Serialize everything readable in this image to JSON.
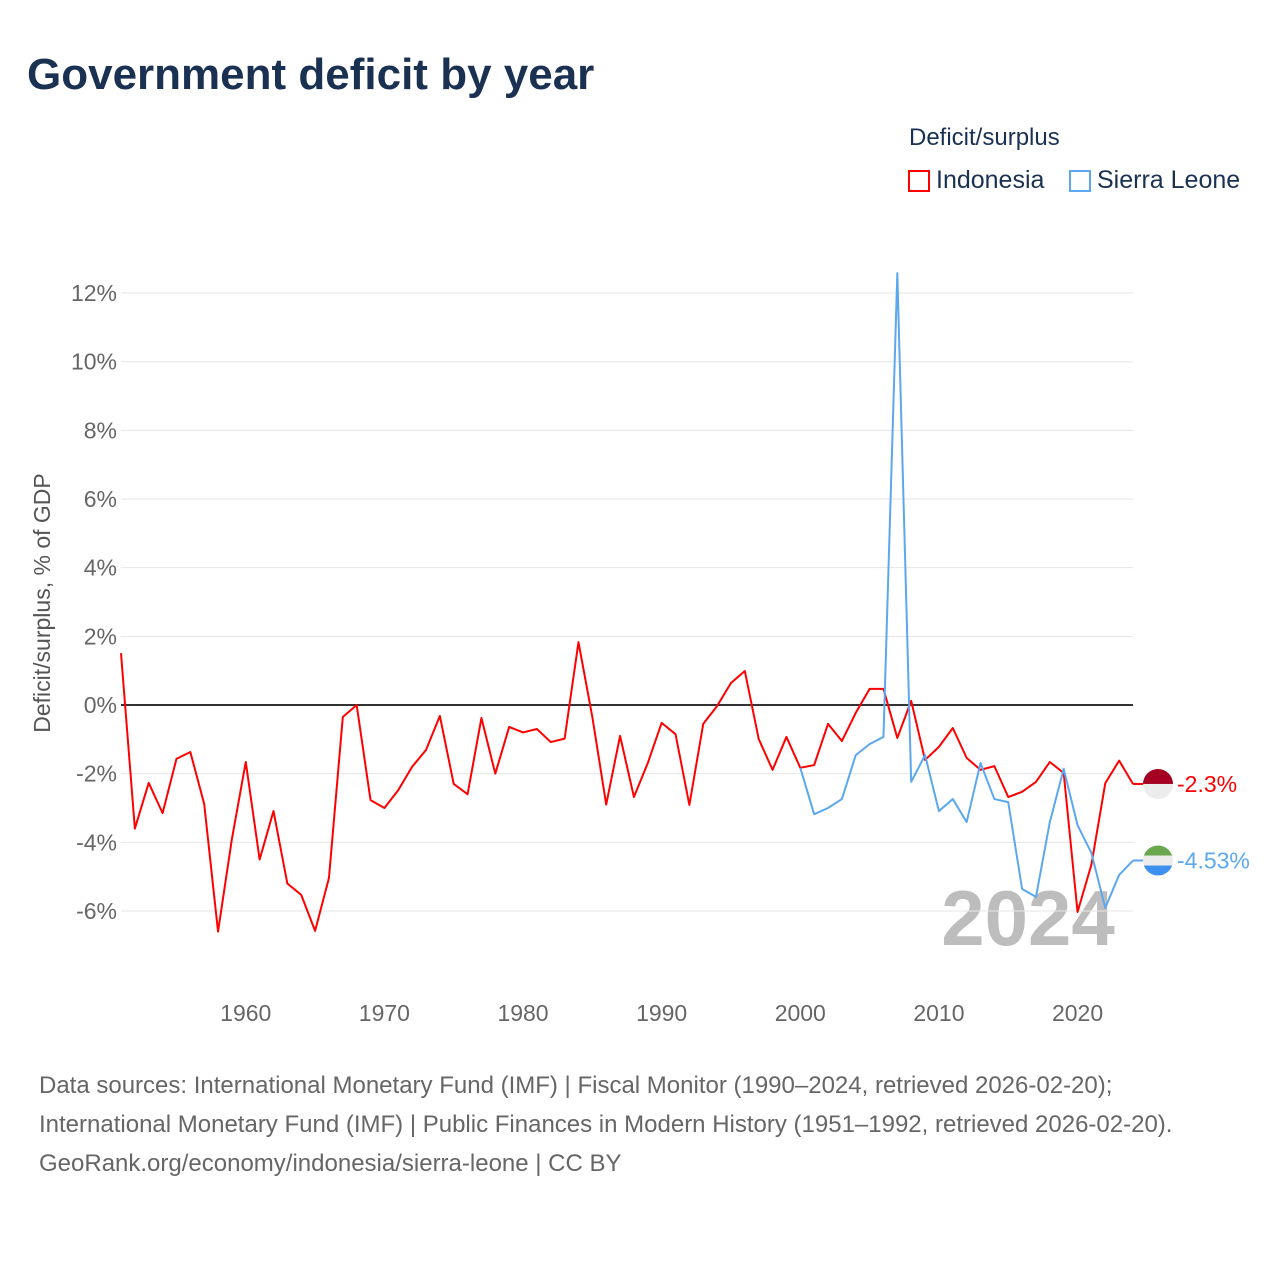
{
  "title": "Government deficit by year",
  "legend": {
    "title": "Deficit/surplus",
    "items": [
      {
        "label": "Indonesia",
        "color": "#ff0000"
      },
      {
        "label": "Sierra Leone",
        "color": "#5ba8f0"
      }
    ]
  },
  "watermark_year": "2024",
  "footer": {
    "sources": "Data sources: International Monetary Fund (IMF) | Fiscal Monitor (1990–2024, retrieved 2026-02-20); International Monetary Fund (IMF) | Public Finances in Modern History (1951–1992, retrieved 2026-02-20).",
    "credit": "GeoRank.org/economy/indonesia/sierra-leone | CC BY"
  },
  "chart_data": {
    "type": "line",
    "title": "Government deficit by year",
    "ylabel": "Deficit/surplus, % of GDP",
    "xlabel": "",
    "xlim": [
      1951,
      2024
    ],
    "ylim": [
      -8.1,
      12.8
    ],
    "grid": true,
    "legend_placement": "top-right",
    "x_ticks": [
      1960,
      1970,
      1980,
      1990,
      2000,
      2010,
      2020
    ],
    "x_tick_labels": [
      "1960",
      "1970",
      "1980",
      "1990",
      "2000",
      "2010",
      "2020"
    ],
    "y_ticks": [
      -6,
      -4,
      -2,
      0,
      2,
      4,
      6,
      8,
      10,
      12
    ],
    "y_tick_labels": [
      "-6%",
      "-4%",
      "-2%",
      "0%",
      "2%",
      "4%",
      "6%",
      "8%",
      "10%",
      "12%"
    ],
    "series": [
      {
        "name": "Indonesia",
        "color": "#ff0000",
        "end_label": "-2.3%",
        "start_year": 1951,
        "values": [
          1.51,
          -3.6,
          -2.27,
          -3.15,
          -1.57,
          -1.37,
          -2.88,
          -6.6,
          -3.9,
          -1.66,
          -4.5,
          -3.09,
          -5.2,
          -5.53,
          -6.58,
          -5.04,
          -0.35,
          0,
          -2.77,
          -3.0,
          -2.48,
          -1.8,
          -1.31,
          -0.32,
          -2.3,
          -2.6,
          -0.38,
          -2.0,
          -0.64,
          -0.8,
          -0.7,
          -1.08,
          -0.98,
          1.83,
          -0.35,
          -2.9,
          -0.9,
          -2.68,
          -1.69,
          -0.52,
          -0.85,
          -2.91,
          -0.55,
          -0.03,
          0.64,
          0.99,
          -0.99,
          -1.89,
          -0.93,
          -1.83,
          -1.75,
          -0.55,
          -1.05,
          -0.23,
          0.47,
          0.47,
          -0.96,
          0.12,
          -1.6,
          -1.22,
          -0.67,
          -1.54,
          -1.89,
          -1.78,
          -2.68,
          -2.53,
          -2.24,
          -1.66,
          -1.98,
          -6.03,
          -4.65,
          -2.28,
          -1.62,
          -2.3
        ]
      },
      {
        "name": "Sierra Leone",
        "color": "#5ba8f0",
        "end_label": "-4.53%",
        "start_year": 2000,
        "values": [
          -1.83,
          -3.18,
          -3.0,
          -2.74,
          -1.46,
          -1.14,
          -0.93,
          12.58,
          -2.24,
          -1.46,
          -3.09,
          -2.74,
          -3.41,
          -1.69,
          -2.74,
          -2.83,
          -5.36,
          -5.59,
          -3.41,
          -1.86,
          -3.5,
          -4.31,
          -5.91,
          -4.95,
          -4.53
        ]
      }
    ]
  }
}
